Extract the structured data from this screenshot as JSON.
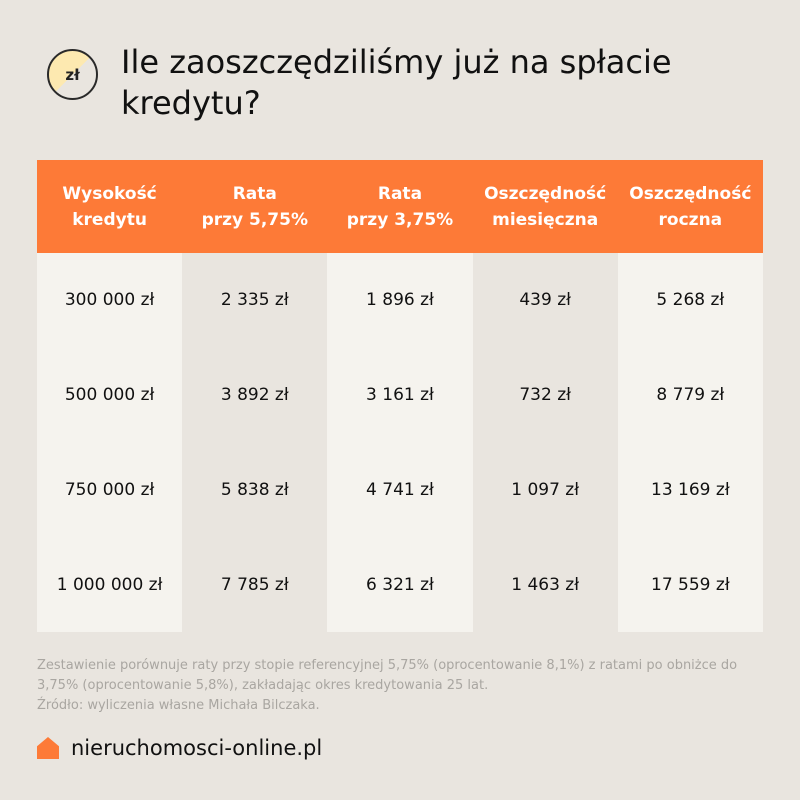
{
  "header": {
    "icon_label": "zł",
    "title": "Ile zaoszczędziliśmy już na spłacie kredytu?"
  },
  "table": {
    "columns": [
      "Wysokość\nkredytu",
      "Rata\nprzy 5,75%",
      "Rata\nprzy 3,75%",
      "Oszczędność\nmiesięczna",
      "Oszczędność\nroczna"
    ],
    "rows": [
      [
        "300 000 zł",
        "2 335 zł",
        "1 896 zł",
        "439 zł",
        "5 268 zł"
      ],
      [
        "500 000 zł",
        "3 892 zł",
        "3 161 zł",
        "732 zł",
        "8 779 zł"
      ],
      [
        "750 000 zł",
        "5 838 zł",
        "4 741 zł",
        "1 097 zł",
        "13 169 zł"
      ],
      [
        "1 000 000 zł",
        "7 785 zł",
        "6 321 zł",
        "1 463 zł",
        "17 559 zł"
      ]
    ]
  },
  "footnote": {
    "line1": "Zestawienie porównuje raty przy stopie referencyjnej 5,75% (oprocentowanie 8,1%) z ratami po obniżce do 3,75% (oprocentowanie 5,8%), zakładając okres kredytowania 25 lat.",
    "source": "Źródło: wyliczenia własne Michała Bilczaka."
  },
  "brand": {
    "name": "nieruchomosci-online.pl",
    "icon": "house-icon"
  },
  "colors": {
    "accent": "#fd7a37",
    "background": "#e9e5df"
  }
}
